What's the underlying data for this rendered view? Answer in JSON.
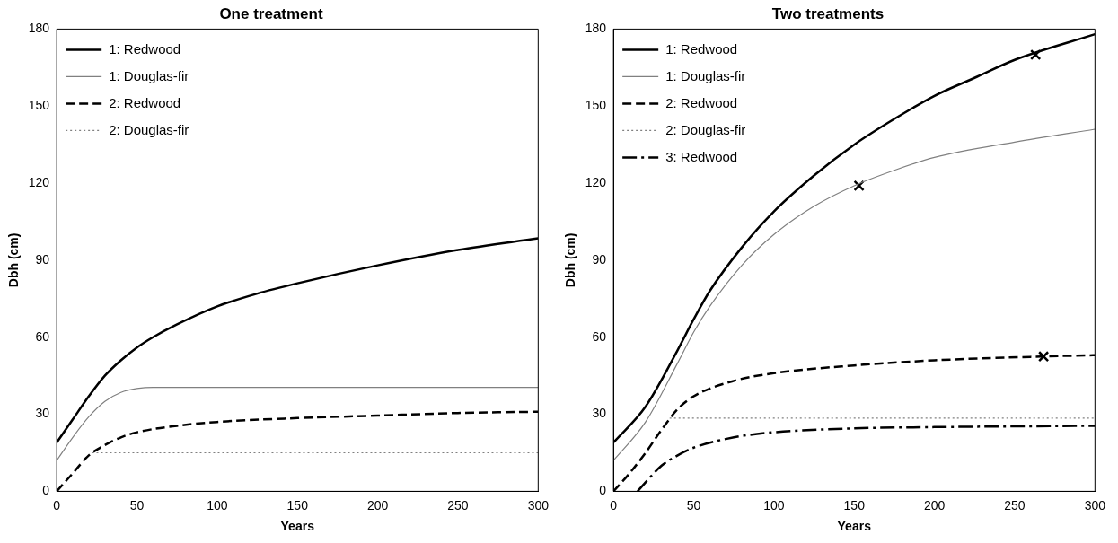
{
  "chart_data": [
    {
      "type": "line",
      "title": "One treatment",
      "xlabel": "Years",
      "ylabel": "Dbh (cm)",
      "xlim": [
        0,
        300
      ],
      "xticks": [
        0,
        50,
        100,
        150,
        200,
        250,
        300
      ],
      "ylim": [
        0,
        180
      ],
      "yticks": [
        0,
        30,
        60,
        90,
        120,
        150,
        180
      ],
      "grid": false,
      "legend": "top left",
      "marker": "none",
      "series": [
        {
          "name": "1: Redwood",
          "color": "#000000",
          "line_style": "solid",
          "x": [
            0,
            10,
            20,
            30,
            40,
            50,
            60,
            75,
            100,
            125,
            150,
            200,
            250,
            300
          ],
          "values": [
            19,
            28,
            37,
            45,
            51,
            56,
            60,
            65,
            72,
            77,
            81,
            88,
            94,
            98.5
          ]
        },
        {
          "name": "1: Douglas-fir",
          "color": "#808080",
          "line_style": "solid",
          "x": [
            0,
            10,
            20,
            30,
            40,
            50,
            60,
            75,
            300
          ],
          "values": [
            12,
            21,
            29,
            35,
            38.5,
            40,
            40.5,
            40.5,
            40.5
          ]
        },
        {
          "name": "2: Redwood",
          "color": "#000000",
          "line_style": "dashed",
          "x": [
            0,
            10,
            20,
            30,
            40,
            50,
            75,
            100,
            150,
            200,
            250,
            300
          ],
          "values": [
            0,
            7,
            14,
            18,
            21,
            23,
            25.5,
            27,
            28.5,
            29.5,
            30.5,
            31
          ]
        },
        {
          "name": "2: Douglas-fir",
          "color": "#808080",
          "line_style": "dotted",
          "x": [
            22,
            300
          ],
          "values": [
            15,
            15
          ]
        }
      ]
    },
    {
      "type": "line",
      "title": "Two treatments",
      "xlabel": "Years",
      "ylabel": "Dbh (cm)",
      "xlim": [
        0,
        300
      ],
      "xticks": [
        0,
        50,
        100,
        150,
        200,
        250,
        300
      ],
      "ylim": [
        0,
        180
      ],
      "yticks": [
        0,
        30,
        60,
        90,
        120,
        150,
        180
      ],
      "grid": false,
      "legend": "top left",
      "marker": "none",
      "series": [
        {
          "name": "1: Redwood",
          "color": "#000000",
          "line_style": "solid",
          "x": [
            0,
            20,
            40,
            50,
            60,
            80,
            100,
            125,
            150,
            175,
            200,
            225,
            250,
            300
          ],
          "values": [
            19,
            33,
            55,
            67,
            78,
            95,
            109,
            123,
            135,
            145,
            154,
            161,
            168,
            178
          ]
        },
        {
          "name": "1: Douglas-fir",
          "color": "#808080",
          "line_style": "solid",
          "x": [
            0,
            20,
            40,
            50,
            60,
            80,
            100,
            125,
            150,
            175,
            200,
            250,
            300
          ],
          "values": [
            12,
            27,
            50,
            62,
            72,
            88,
            100,
            111,
            119,
            125,
            130,
            136,
            141
          ]
        },
        {
          "name": "2: Redwood",
          "color": "#000000",
          "line_style": "dashed",
          "x": [
            0,
            10,
            20,
            30,
            40,
            50,
            75,
            100,
            150,
            200,
            268,
            300
          ],
          "values": [
            0,
            7,
            15,
            24,
            32,
            37,
            43,
            46,
            49,
            51,
            52.5,
            53
          ]
        },
        {
          "name": "2: Douglas-fir",
          "color": "#808080",
          "line_style": "dotted",
          "x": [
            35,
            300
          ],
          "values": [
            28.5,
            28.5
          ]
        },
        {
          "name": "3: Redwood",
          "color": "#000000",
          "line_style": "dashdot",
          "x": [
            15,
            30,
            40,
            50,
            75,
            100,
            150,
            200,
            300
          ],
          "values": [
            0,
            10,
            14,
            17,
            21,
            23,
            24.5,
            25,
            25.5
          ]
        },
        {
          "type": "scatter",
          "color": "#000000",
          "marker": "cross",
          "x": [
            263,
            153,
            268
          ],
          "values": [
            170,
            119,
            52.5
          ]
        }
      ]
    }
  ]
}
